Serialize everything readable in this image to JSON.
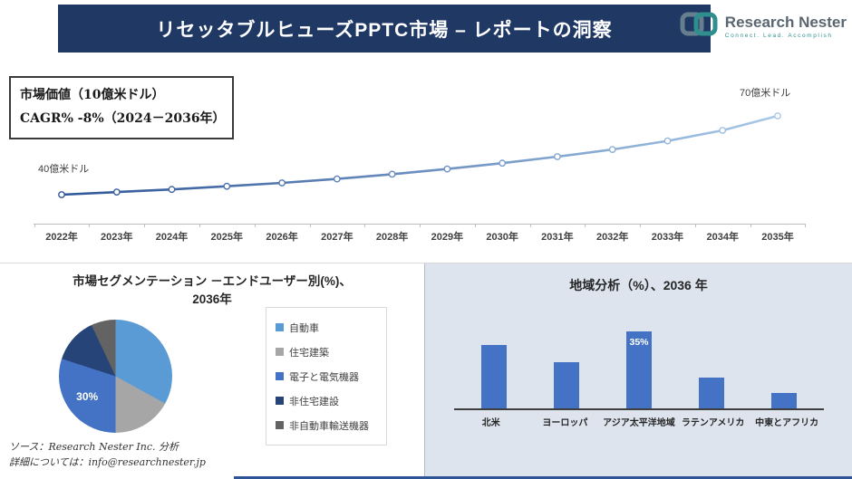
{
  "header": {
    "title": "リセッタブルヒューズPPTC市場 – レポートの洞察"
  },
  "logo": {
    "name": "Research Nester",
    "tagline": "Connect. Lead. Accomplish"
  },
  "info_box": {
    "market_value": "市場価値（10億米ドル）",
    "cagr": "CAGR% -8%（2024－2036年）"
  },
  "footer": {
    "source": "ソース：Research Nester Inc. 分析",
    "contact": "詳細については：info@researchnester.jp"
  },
  "colors": {
    "banner_bg": "#1f3864",
    "accent_blue": "#4472c4",
    "region_panel_bg": "#dde4ee",
    "bottom_bar": "#2f5496",
    "logo_teal": "#2e8f8e",
    "logo_gray": "#667f8e"
  },
  "chart_data": [
    {
      "type": "line",
      "title": "",
      "x": [
        "2022年",
        "2023年",
        "2024年",
        "2025年",
        "2026年",
        "2027年",
        "2028年",
        "2029年",
        "2030年",
        "2031年",
        "2032年",
        "2033年",
        "2034年",
        "2035年"
      ],
      "values": [
        40,
        41,
        42,
        43.2,
        44.5,
        46,
        47.8,
        49.8,
        52,
        54.5,
        57.2,
        60.5,
        64.5,
        70
      ],
      "start_label": "40億米ドル",
      "end_label": "70億米ドル",
      "ylabel": "10億米ドル",
      "ylim": [
        38,
        72
      ],
      "grid": false,
      "color_start": "#2e5597",
      "color_end": "#a8c9e8"
    },
    {
      "type": "pie",
      "title_line1": "市場セグメンテーション －エンドユーザー別(%)、",
      "title_line2": "2036年",
      "legend_position": "right",
      "slices": [
        {
          "label": "自動車",
          "value": 33,
          "color": "#5b9bd5"
        },
        {
          "label": "住宅建築",
          "value": 17,
          "color": "#a6a6a6"
        },
        {
          "label": "電子と電気機器",
          "value": 30,
          "color": "#4472c4",
          "data_label": "30%"
        },
        {
          "label": "非住宅建設",
          "value": 13,
          "color": "#264478"
        },
        {
          "label": "非自動車輸送機器",
          "value": 7,
          "color": "#636363"
        }
      ]
    },
    {
      "type": "bar",
      "title": "地域分析（%）、2036 年",
      "categories": [
        "北米",
        "ヨーロッパ",
        "アジア太平洋地域",
        "ラテンアメリカ",
        "中東とアフリカ"
      ],
      "values": [
        29,
        21,
        35,
        14,
        7
      ],
      "data_labels": [
        "",
        "",
        "35%",
        "",
        ""
      ],
      "bar_color": "#4472c4",
      "ylim": [
        0,
        40
      ],
      "grid": false
    }
  ]
}
